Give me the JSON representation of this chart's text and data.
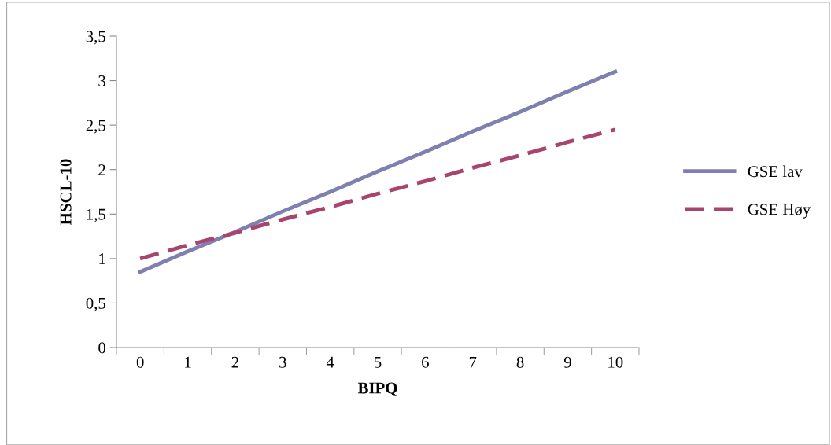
{
  "chart_data": {
    "type": "line",
    "xlabel": "BIPQ",
    "ylabel": "HSCL-10",
    "categories": [
      "0",
      "1",
      "2",
      "3",
      "4",
      "5",
      "6",
      "7",
      "8",
      "9",
      "10"
    ],
    "series": [
      {
        "name": "GSE lav",
        "color": "#7f7fb0",
        "line_style": "solid",
        "values": [
          0.85,
          1.08,
          1.3,
          1.53,
          1.75,
          1.98,
          2.2,
          2.43,
          2.65,
          2.88,
          3.1
        ]
      },
      {
        "name": "GSE Høy",
        "color": "#a8456e",
        "line_style": "dashed",
        "values": [
          1.0,
          1.15,
          1.29,
          1.44,
          1.58,
          1.73,
          1.87,
          2.02,
          2.16,
          2.31,
          2.45
        ]
      }
    ],
    "ylim": [
      0,
      3.5
    ],
    "yticks": [
      0,
      {
        "value": 0.5,
        "label": "0,5"
      },
      1,
      {
        "value": 1.5,
        "label": "1,5"
      },
      2,
      {
        "value": 2.5,
        "label": "2,5"
      },
      3,
      {
        "value": 3.5,
        "label": "3,5"
      }
    ],
    "grid": false,
    "legend": "right",
    "marker": "none"
  }
}
